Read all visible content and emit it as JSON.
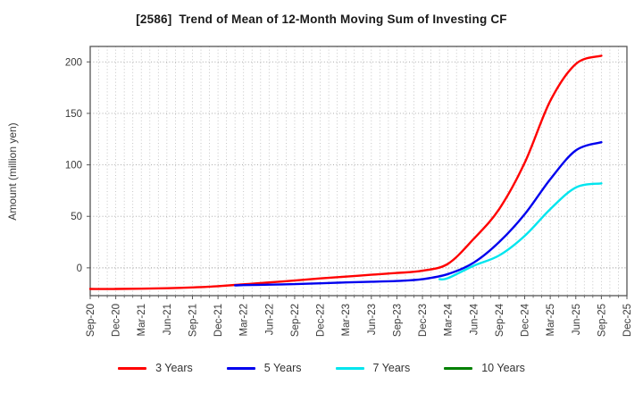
{
  "title": "[2586]  Trend of Mean of 12-Month Moving Sum of Investing CF",
  "chart_data": {
    "type": "line",
    "title": "[2586]  Trend of Mean of 12-Month Moving Sum of Investing CF",
    "ylabel": "Amount (million yen)",
    "xlabel": "",
    "ylim": [
      -27,
      215
    ],
    "yticks": [
      0,
      50,
      100,
      150,
      200
    ],
    "x_tick_labels": [
      "Sep-20",
      "Dec-20",
      "Mar-21",
      "Jun-21",
      "Sep-21",
      "Dec-21",
      "Mar-22",
      "Jun-22",
      "Sep-22",
      "Dec-22",
      "Mar-23",
      "Jun-23",
      "Sep-23",
      "Dec-23",
      "Mar-24",
      "Jun-24",
      "Sep-24",
      "Dec-24",
      "Mar-25",
      "Jun-25",
      "Sep-25",
      "Dec-25"
    ],
    "x_months_total": 63,
    "x_note": "x values are months since Sep-20; labeled ticks every 3 months; dotted gridlines monthly",
    "grid": true,
    "legend_position": "bottom-center",
    "series": [
      {
        "name": "3 Years",
        "color": "#ff0000",
        "points": [
          [
            0,
            -20.5
          ],
          [
            3,
            -20.5
          ],
          [
            6,
            -20.2
          ],
          [
            9,
            -19.8
          ],
          [
            12,
            -19
          ],
          [
            15,
            -17.8
          ],
          [
            18,
            -16
          ],
          [
            21,
            -14.2
          ],
          [
            24,
            -12.3
          ],
          [
            27,
            -10.3
          ],
          [
            30,
            -8.5
          ],
          [
            33,
            -6.7
          ],
          [
            36,
            -5
          ],
          [
            39,
            -2.8
          ],
          [
            42,
            4
          ],
          [
            45,
            28
          ],
          [
            48,
            57
          ],
          [
            51,
            102
          ],
          [
            54,
            162
          ],
          [
            57,
            198
          ],
          [
            60,
            206
          ]
        ]
      },
      {
        "name": "5 Years",
        "color": "#0000ee",
        "points": [
          [
            17,
            -17
          ],
          [
            18,
            -16.8
          ],
          [
            21,
            -16.3
          ],
          [
            24,
            -15.8
          ],
          [
            27,
            -15
          ],
          [
            30,
            -14.2
          ],
          [
            33,
            -13.5
          ],
          [
            36,
            -12.8
          ],
          [
            39,
            -11
          ],
          [
            42,
            -6
          ],
          [
            45,
            5
          ],
          [
            48,
            25
          ],
          [
            51,
            52
          ],
          [
            54,
            86
          ],
          [
            57,
            114
          ],
          [
            60,
            122
          ]
        ]
      },
      {
        "name": "7 Years",
        "color": "#00e5ee",
        "points": [
          [
            41,
            -11
          ],
          [
            42,
            -10
          ],
          [
            45,
            2
          ],
          [
            48,
            12
          ],
          [
            51,
            31
          ],
          [
            54,
            57
          ],
          [
            57,
            78
          ],
          [
            60,
            82
          ]
        ]
      },
      {
        "name": "10 Years",
        "color": "#008000",
        "points": []
      }
    ]
  }
}
